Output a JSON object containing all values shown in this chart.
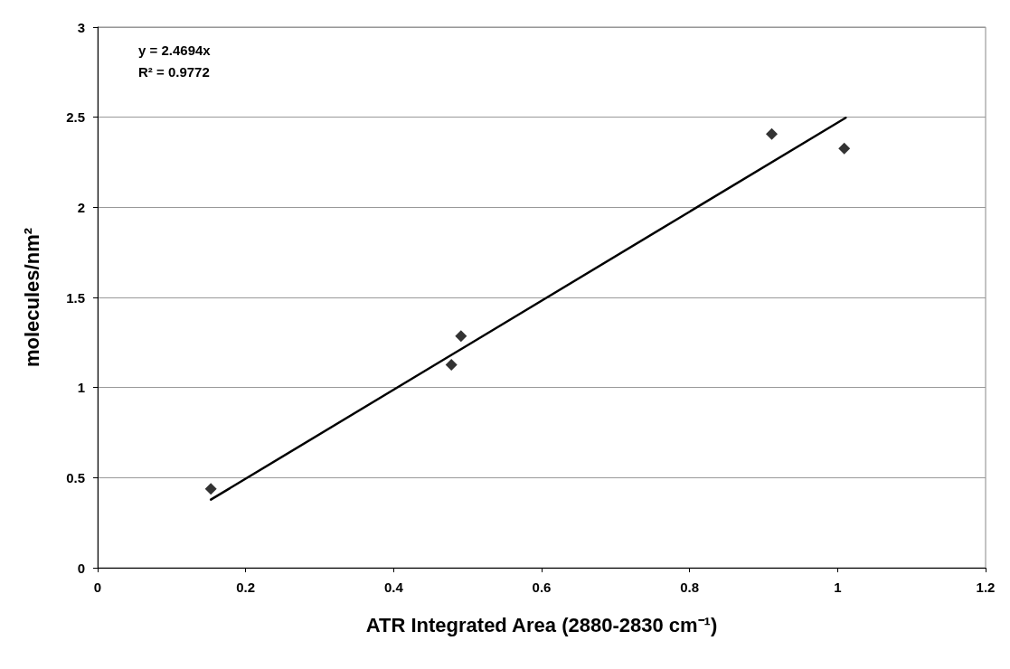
{
  "chart_data": {
    "type": "scatter",
    "xlabel": "ATR Integrated Area (2880-2830 cm⁻¹)",
    "ylabel": "molecules/nm²",
    "annotations": [
      "y = 2.4694x",
      "R² = 0.9772"
    ],
    "series": [
      {
        "color": "#000000",
        "marker": "diamond",
        "x": [
          0.153,
          0.478,
          0.491,
          0.911,
          1.009
        ],
        "values": [
          0.438,
          1.126,
          1.285,
          2.407,
          2.326
        ]
      },
      {
        "type": "line",
        "color": "#000000",
        "marker": "none",
        "line_style": "solid",
        "x": [
          0.153,
          1.011
        ],
        "values": [
          0.378,
          2.497
        ]
      }
    ],
    "xlim": [
      0,
      1.2
    ],
    "xticks": [
      0,
      0.2,
      0.4,
      0.6,
      0.8,
      1,
      1.2
    ],
    "ylim": [
      0,
      3
    ],
    "yticks": [
      0,
      0.5,
      1,
      1.5,
      2,
      2.5,
      3
    ],
    "grid": "y"
  }
}
